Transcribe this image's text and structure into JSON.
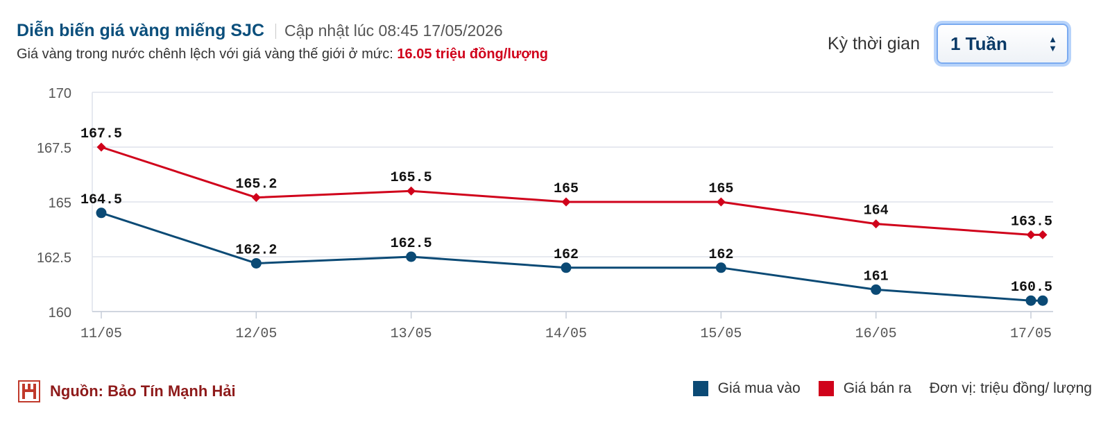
{
  "header": {
    "title": "Diễn biến giá vàng miếng SJC",
    "updated": "Cập nhật lúc 08:45 17/05/2026",
    "subtitle_prefix": "Giá vàng trong nước chênh lệch với giá vàng thế giới ở mức:",
    "subtitle_value": "16.05 triệu đồng/lượng"
  },
  "period": {
    "label": "Kỳ thời gian",
    "selected": "1 Tuần"
  },
  "footer": {
    "source": "Nguồn: Bảo Tín Mạnh Hải",
    "unit": "Đơn vị: triệu đồng/ lượng"
  },
  "colors": {
    "buy": "#0b4a75",
    "sell": "#d0021b",
    "grid": "#dde2ec",
    "logo": "#c0392b"
  },
  "icons": {
    "logo": "bao-tin-manh-hai-logo-icon",
    "select": "select-arrows-icon"
  },
  "chart_data": {
    "type": "line",
    "categories": [
      "11/05",
      "12/05",
      "13/05",
      "14/05",
      "15/05",
      "16/05",
      "17/05"
    ],
    "ylim": [
      160,
      170
    ],
    "yticks": [
      160,
      162.5,
      165,
      167.5,
      170
    ],
    "ytick_labels": [
      "160",
      "162.5",
      "165",
      "167.5",
      "170"
    ],
    "grid": true,
    "legend": "bottom-right",
    "series": [
      {
        "name": "Giá mua vào",
        "color": "#0b4a75",
        "marker": "circle",
        "values": [
          164.5,
          162.2,
          162.5,
          162,
          162,
          161,
          160.5
        ],
        "labels": [
          "164.5",
          "162.2",
          "162.5",
          "162",
          "162",
          "161",
          "160.5"
        ]
      },
      {
        "name": "Giá bán ra",
        "color": "#d0021b",
        "marker": "diamond",
        "values": [
          167.5,
          165.2,
          165.5,
          165,
          165,
          164,
          163.5
        ],
        "labels": [
          "167.5",
          "165.2",
          "165.5",
          "165",
          "165",
          "164",
          "163.5"
        ]
      }
    ]
  }
}
